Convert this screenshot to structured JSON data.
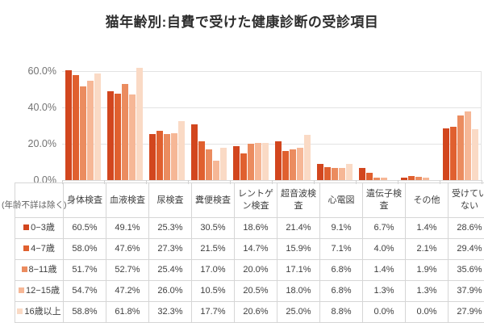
{
  "title": "猫年齢別:自費で受けた健康診断の受診項目",
  "note": "(年齢不詳は除く)",
  "chart_data": {
    "type": "bar",
    "title": "猫年齢別:自費で受けた健康診断の受診項目",
    "xlabel": "",
    "ylabel": "",
    "ylim": [
      0,
      65
    ],
    "grid": true,
    "legend_position": "table-rows-below-chart",
    "yticks": [
      "0.0%",
      "20.0%",
      "40.0%",
      "60.0%"
    ],
    "ytick_values": [
      0,
      20,
      40,
      60
    ],
    "categories": [
      "身体検査",
      "血液検査",
      "尿検査",
      "糞便検査",
      "レントゲン検査",
      "超音波検査",
      "心電図",
      "遺伝子検査",
      "その他",
      "受けていない"
    ],
    "series": [
      {
        "name": "0−3歳",
        "color": "#d2461e",
        "values": [
          60.5,
          49.1,
          25.3,
          30.5,
          18.6,
          21.4,
          9.1,
          6.7,
          1.4,
          28.6
        ]
      },
      {
        "name": "4−7歳",
        "color": "#e0602f",
        "values": [
          58.0,
          47.6,
          27.3,
          21.5,
          14.7,
          15.9,
          7.1,
          4.0,
          2.1,
          29.4
        ]
      },
      {
        "name": "8−11歳",
        "color": "#eb8c5f",
        "values": [
          51.7,
          52.7,
          25.4,
          17.0,
          20.0,
          17.1,
          6.8,
          1.4,
          1.9,
          35.6
        ]
      },
      {
        "name": "12−15歳",
        "color": "#f6b796",
        "values": [
          54.7,
          47.2,
          26.0,
          10.5,
          20.5,
          18.0,
          6.8,
          1.3,
          1.3,
          37.9
        ]
      },
      {
        "name": "16歳以上",
        "color": "#fadac5",
        "values": [
          58.8,
          61.8,
          32.3,
          17.7,
          20.6,
          25.0,
          8.8,
          0.0,
          0.0,
          27.9
        ]
      }
    ],
    "value_suffix": "%"
  },
  "colors": {
    "grid": "#e3e3e3",
    "axis_text": "#737373",
    "table_border": "#d6d6d6",
    "table_text": "#3f3f3f",
    "title_text": "#2e2e2e"
  }
}
